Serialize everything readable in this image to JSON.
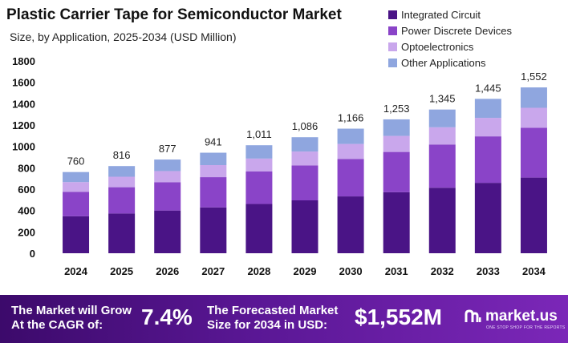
{
  "chart_data": {
    "type": "bar",
    "stacked": true,
    "title": "Plastic Carrier Tape for Semiconductor Market",
    "subtitle": "Size, by Application, 2025-2034 (USD Million)",
    "categories": [
      "2024",
      "2025",
      "2026",
      "2027",
      "2028",
      "2029",
      "2030",
      "2031",
      "2032",
      "2033",
      "2034"
    ],
    "totals": [
      760,
      816,
      877,
      941,
      1011,
      1086,
      1166,
      1253,
      1345,
      1445,
      1552
    ],
    "total_labels": [
      "760",
      "816",
      "877",
      "941",
      "1,011",
      "1,086",
      "1,166",
      "1,253",
      "1,345",
      "1,445",
      "1,552"
    ],
    "series": [
      {
        "name": "Integrated Circuit",
        "color": "#4a1486",
        "values": [
          346,
          372,
          400,
          429,
          461,
          495,
          532,
          571,
          613,
          659,
          708
        ]
      },
      {
        "name": "Power Discrete Devices",
        "color": "#8a44c8",
        "values": [
          229,
          246,
          264,
          283,
          304,
          327,
          351,
          377,
          405,
          435,
          467
        ]
      },
      {
        "name": "Optoelectronics",
        "color": "#c9a7ec",
        "values": [
          91,
          98,
          105,
          113,
          121,
          130,
          140,
          150,
          161,
          173,
          186
        ]
      },
      {
        "name": "Other Applications",
        "color": "#8fa6df",
        "values": [
          94,
          100,
          108,
          116,
          125,
          134,
          143,
          155,
          166,
          178,
          191
        ]
      }
    ],
    "yticks": [
      "0",
      "200",
      "400",
      "600",
      "800",
      "1000",
      "1200",
      "1400",
      "1600",
      "1800"
    ],
    "ylim": [
      0,
      1800
    ],
    "grid": false,
    "legend": "top-right"
  },
  "footer": {
    "cagr_label": [
      "The Market will Grow",
      "At the CAGR of:"
    ],
    "cagr_value": "7.4%",
    "forecast_label": [
      "The Forecasted Market",
      "Size for 2034 in USD:"
    ],
    "forecast_value": "$1,552M",
    "brand": "market.us",
    "brand_tagline": "ONE STOP SHOP FOR THE REPORTS"
  }
}
